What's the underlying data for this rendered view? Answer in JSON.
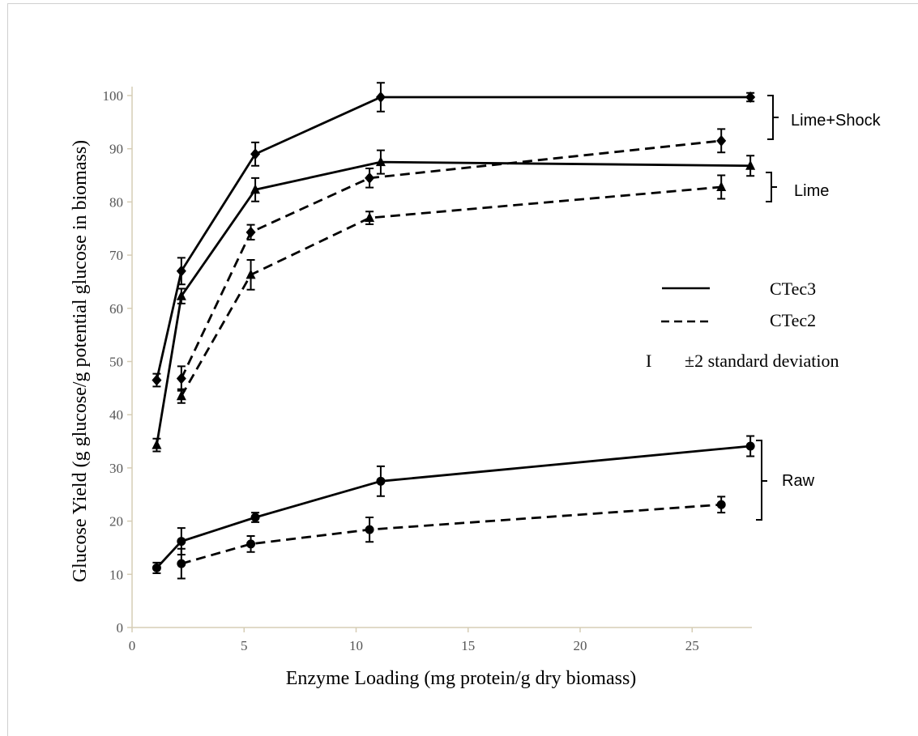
{
  "chart_data": {
    "type": "line",
    "xlabel": "Enzyme Loading (mg protein/g dry biomass)",
    "ylabel": "Glucose Yield (g glucose/g potential glucose in biomass)",
    "xlim": [
      0,
      28
    ],
    "ylim": [
      0,
      100
    ],
    "x_ticks": [
      "0",
      "5",
      "10",
      "15",
      "20",
      "25"
    ],
    "y_ticks": [
      "0",
      "10",
      "20",
      "30",
      "40",
      "50",
      "60",
      "70",
      "80",
      "90",
      "100"
    ],
    "grid": false,
    "legend_position": "right",
    "legend": [
      {
        "label": "CTec3",
        "style": "solid"
      },
      {
        "label": "CTec2",
        "style": "dashed"
      }
    ],
    "errorbar_note": {
      "symbol": "I",
      "label": "±2 standard deviation"
    },
    "groups": [
      {
        "label": "Lime+Shock"
      },
      {
        "label": "Lime"
      },
      {
        "label": "Raw"
      }
    ],
    "series": [
      {
        "group": "Lime+Shock",
        "enzyme": "CTec3",
        "dash": "solid",
        "marker": "diamond",
        "x": [
          1.1,
          2.2,
          5.5,
          11.1,
          27.6
        ],
        "y": [
          46.5,
          67.0,
          89.0,
          99.7,
          99.7
        ],
        "err": [
          1.2,
          2.5,
          2.2,
          2.7,
          0.8
        ]
      },
      {
        "group": "Lime+Shock",
        "enzyme": "CTec2",
        "dash": "dashed",
        "marker": "diamond",
        "x": [
          2.2,
          5.3,
          10.6,
          26.3
        ],
        "y": [
          46.8,
          74.3,
          84.5,
          91.5
        ],
        "err": [
          2.3,
          1.4,
          1.8,
          2.2
        ]
      },
      {
        "group": "Lime",
        "enzyme": "CTec3",
        "dash": "solid",
        "marker": "triangle",
        "x": [
          1.1,
          2.2,
          5.5,
          11.1,
          27.6
        ],
        "y": [
          34.3,
          62.3,
          82.3,
          87.5,
          86.8
        ],
        "err": [
          1.2,
          1.4,
          2.2,
          2.2,
          1.9
        ]
      },
      {
        "group": "Lime",
        "enzyme": "CTec2",
        "dash": "dashed",
        "marker": "triangle",
        "x": [
          2.2,
          5.3,
          10.6,
          26.3
        ],
        "y": [
          43.5,
          66.3,
          77.0,
          82.8
        ],
        "err": [
          1.3,
          2.8,
          1.2,
          2.2
        ]
      },
      {
        "group": "Raw",
        "enzyme": "CTec3",
        "dash": "solid",
        "marker": "circle",
        "x": [
          1.1,
          2.2,
          5.5,
          11.1,
          27.6
        ],
        "y": [
          11.2,
          16.2,
          20.7,
          27.5,
          34.1
        ],
        "err": [
          1.0,
          2.5,
          0.9,
          2.8,
          1.9
        ]
      },
      {
        "group": "Raw",
        "enzyme": "CTec2",
        "dash": "dashed",
        "marker": "circle",
        "x": [
          2.2,
          5.3,
          10.6,
          26.3
        ],
        "y": [
          12.0,
          15.7,
          18.4,
          23.1
        ],
        "err": [
          2.8,
          1.5,
          2.3,
          1.5
        ]
      }
    ]
  }
}
